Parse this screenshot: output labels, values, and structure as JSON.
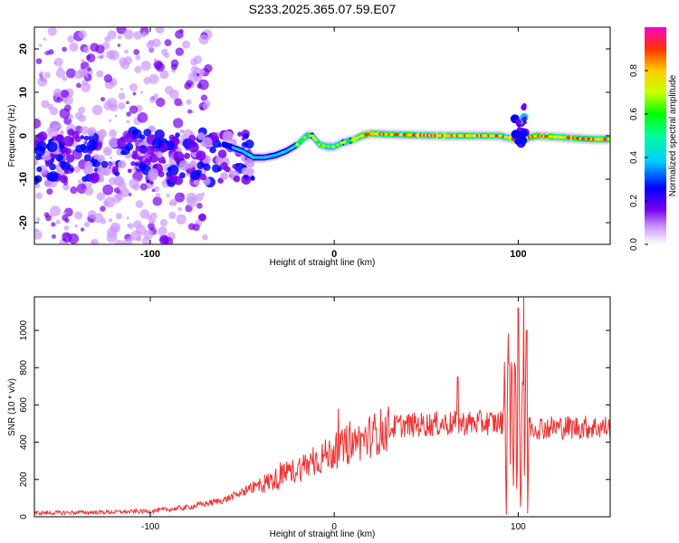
{
  "title": "S233.2025.365.07.59.E07",
  "chart_data": [
    {
      "type": "heatmap",
      "name": "spectrogram",
      "xlabel": "Height of straight line (km)",
      "ylabel": "Frequency (Hz)",
      "xlim": [
        -163,
        150
      ],
      "ylim": [
        -25,
        25
      ],
      "xticks": [
        -100,
        0,
        100
      ],
      "yticks": [
        -20,
        -10,
        0,
        10,
        20
      ],
      "colorbar": {
        "label": "Normalized spectral amplitude",
        "range": [
          0,
          1
        ],
        "ticks": [
          "0.0",
          "0.2",
          "0.4",
          "0.6",
          "0.8"
        ]
      },
      "ridge": {
        "x": [
          -60,
          -50,
          -44,
          -38,
          -32,
          -26,
          -20,
          -15,
          -12,
          -8,
          -4,
          0,
          5,
          10,
          15,
          20,
          30,
          60,
          90,
          100,
          110,
          140,
          150
        ],
        "y": [
          -2,
          -3.5,
          -5,
          -5,
          -4.5,
          -3.5,
          -2,
          0,
          0,
          -2,
          -2.5,
          -2.5,
          -1.5,
          -1,
          0,
          0.5,
          0.3,
          0,
          0,
          -1,
          0,
          -0.8,
          -0.8
        ]
      }
    },
    {
      "type": "line",
      "name": "snr",
      "xlabel": "Height of straight line (km)",
      "ylabel": "SNR (10 * v/v)",
      "xlim": [
        -163,
        150
      ],
      "ylim": [
        0,
        1180
      ],
      "xticks": [
        -100,
        0,
        100
      ],
      "yticks": [
        0,
        200,
        400,
        600,
        800,
        1000
      ],
      "color": "#ee3333",
      "trend": {
        "x": [
          -163,
          -120,
          -100,
          -80,
          -60,
          -45,
          -30,
          -15,
          0,
          15,
          25,
          35,
          60,
          90,
          110,
          150
        ],
        "y": [
          20,
          25,
          30,
          50,
          90,
          150,
          210,
          280,
          350,
          410,
          460,
          490,
          500,
          505,
          480,
          480
        ]
      },
      "spikes": [
        {
          "x": 95,
          "y": 820
        },
        {
          "x": 100,
          "y": 1120
        },
        {
          "x": 103,
          "y": 1180
        },
        {
          "x": 104.5,
          "y": 1000
        },
        {
          "x": 67,
          "y": 750
        }
      ]
    }
  ]
}
